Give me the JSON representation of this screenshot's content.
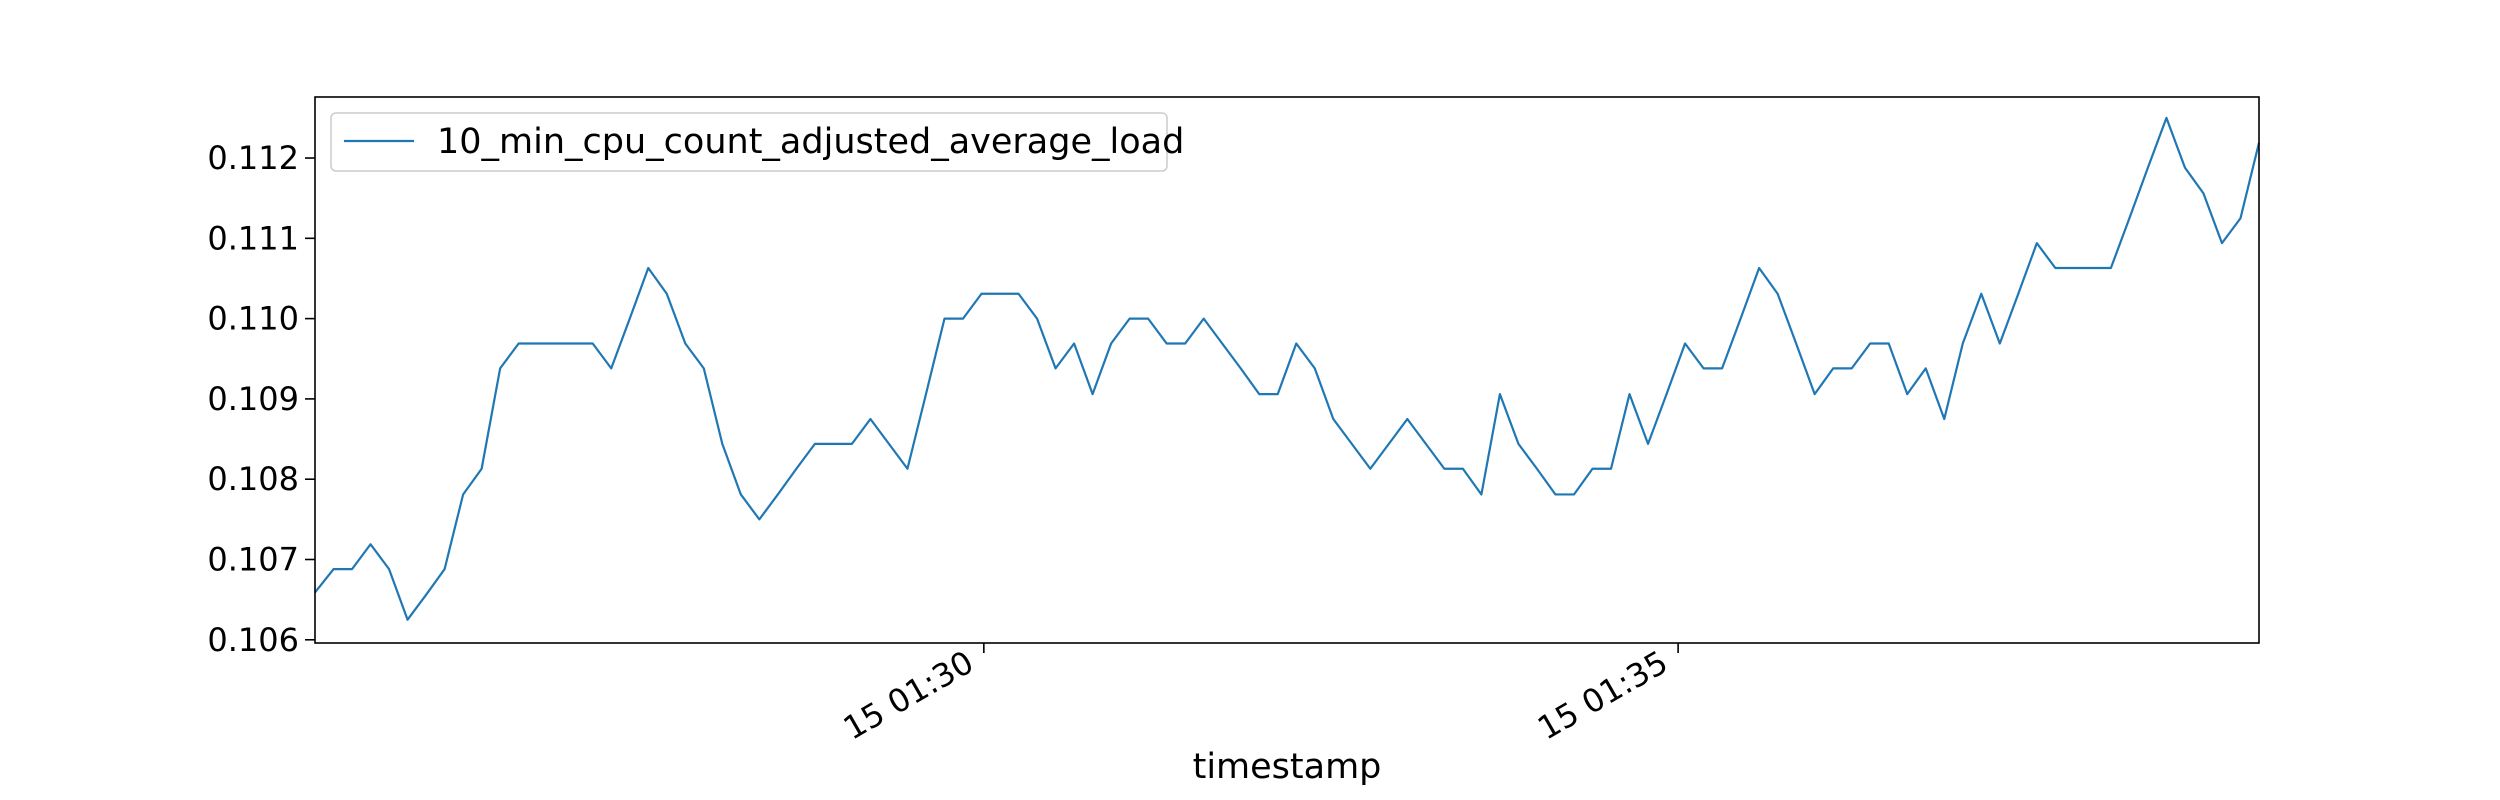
{
  "chart_data": {
    "type": "line",
    "title": "",
    "xlabel": "timestamp",
    "ylabel": "",
    "x_range": [
      "15 01:25:11",
      "15 01:39:11"
    ],
    "ylim": [
      0.10596,
      0.11276
    ],
    "y_ticks": [
      0.106,
      0.107,
      0.108,
      0.109,
      0.11,
      0.111,
      0.112
    ],
    "y_tick_labels": [
      "0.106",
      "0.107",
      "0.108",
      "0.109",
      "0.110",
      "0.111",
      "0.112"
    ],
    "x_ticks": [
      "15 01:30",
      "15 01:35"
    ],
    "x_tick_labels": [
      "15 01:30",
      "15 01:35"
    ],
    "grid": false,
    "legend": {
      "placement": "top-left"
    },
    "series": [
      {
        "name": "10_min_cpu_count_adjusted_average_load",
        "color": "#1f77b4",
        "points": [
          [
            "15 01:25:11",
            0.10659
          ],
          [
            "15 01:25:19",
            0.10688
          ],
          [
            "15 01:25:27",
            0.10688
          ],
          [
            "15 01:25:35",
            0.10719
          ],
          [
            "15 01:25:43",
            0.10688
          ],
          [
            "15 01:25:51",
            0.10625
          ],
          [
            "15 01:25:59",
            0.10656
          ],
          [
            "15 01:26:07",
            0.10688
          ],
          [
            "15 01:26:15",
            0.10781
          ],
          [
            "15 01:26:23",
            0.10813
          ],
          [
            "15 01:26:31",
            0.10938
          ],
          [
            "15 01:26:39",
            0.10969
          ],
          [
            "15 01:26:47",
            0.10969
          ],
          [
            "15 01:26:55",
            0.10969
          ],
          [
            "15 01:27:03",
            0.10969
          ],
          [
            "15 01:27:11",
            0.10969
          ],
          [
            "15 01:27:19",
            0.10938
          ],
          [
            "15 01:27:27",
            0.11
          ],
          [
            "15 01:27:35",
            0.11063
          ],
          [
            "15 01:27:43",
            0.11031
          ],
          [
            "15 01:27:51",
            0.10969
          ],
          [
            "15 01:27:59",
            0.10938
          ],
          [
            "15 01:28:07",
            0.10844
          ],
          [
            "15 01:28:15",
            0.10781
          ],
          [
            "15 01:28:23",
            0.1075
          ],
          [
            "15 01:28:31",
            0.10781
          ],
          [
            "15 01:28:39",
            0.10813
          ],
          [
            "15 01:28:47",
            0.10844
          ],
          [
            "15 01:28:55",
            0.10844
          ],
          [
            "15 01:29:03",
            0.10844
          ],
          [
            "15 01:29:11",
            0.10875
          ],
          [
            "15 01:29:19",
            0.10844
          ],
          [
            "15 01:29:27",
            0.10813
          ],
          [
            "15 01:29:35",
            0.10906
          ],
          [
            "15 01:29:43",
            0.11
          ],
          [
            "15 01:29:51",
            0.11
          ],
          [
            "15 01:29:59",
            0.11031
          ],
          [
            "15 01:30:07",
            0.11031
          ],
          [
            "15 01:30:15",
            0.11031
          ],
          [
            "15 01:30:23",
            0.11
          ],
          [
            "15 01:30:31",
            0.10938
          ],
          [
            "15 01:30:39",
            0.10969
          ],
          [
            "15 01:30:47",
            0.10906
          ],
          [
            "15 01:30:55",
            0.10969
          ],
          [
            "15 01:31:03",
            0.11
          ],
          [
            "15 01:31:11",
            0.11
          ],
          [
            "15 01:31:19",
            0.10969
          ],
          [
            "15 01:31:27",
            0.10969
          ],
          [
            "15 01:31:35",
            0.11
          ],
          [
            "15 01:31:43",
            0.10969
          ],
          [
            "15 01:31:51",
            0.10938
          ],
          [
            "15 01:31:59",
            0.10906
          ],
          [
            "15 01:32:07",
            0.10906
          ],
          [
            "15 01:32:15",
            0.10969
          ],
          [
            "15 01:32:23",
            0.10938
          ],
          [
            "15 01:32:31",
            0.10875
          ],
          [
            "15 01:32:39",
            0.10844
          ],
          [
            "15 01:32:47",
            0.10813
          ],
          [
            "15 01:32:55",
            0.10844
          ],
          [
            "15 01:33:03",
            0.10875
          ],
          [
            "15 01:33:11",
            0.10844
          ],
          [
            "15 01:33:19",
            0.10813
          ],
          [
            "15 01:33:27",
            0.10813
          ],
          [
            "15 01:33:35",
            0.10781
          ],
          [
            "15 01:33:43",
            0.10906
          ],
          [
            "15 01:33:51",
            0.10844
          ],
          [
            "15 01:33:59",
            0.10813
          ],
          [
            "15 01:34:07",
            0.10781
          ],
          [
            "15 01:34:15",
            0.10781
          ],
          [
            "15 01:34:23",
            0.10813
          ],
          [
            "15 01:34:31",
            0.10813
          ],
          [
            "15 01:34:39",
            0.10906
          ],
          [
            "15 01:34:47",
            0.10844
          ],
          [
            "15 01:34:55",
            0.10906
          ],
          [
            "15 01:35:03",
            0.10969
          ],
          [
            "15 01:35:11",
            0.10938
          ],
          [
            "15 01:35:19",
            0.10938
          ],
          [
            "15 01:35:27",
            0.11
          ],
          [
            "15 01:35:35",
            0.11063
          ],
          [
            "15 01:35:43",
            0.11031
          ],
          [
            "15 01:35:51",
            0.10969
          ],
          [
            "15 01:35:59",
            0.10906
          ],
          [
            "15 01:36:07",
            0.10938
          ],
          [
            "15 01:36:15",
            0.10938
          ],
          [
            "15 01:36:23",
            0.10969
          ],
          [
            "15 01:36:31",
            0.10969
          ],
          [
            "15 01:36:39",
            0.10906
          ],
          [
            "15 01:36:47",
            0.10938
          ],
          [
            "15 01:36:55",
            0.10875
          ],
          [
            "15 01:37:03",
            0.10969
          ],
          [
            "15 01:37:11",
            0.11031
          ],
          [
            "15 01:37:19",
            0.10969
          ],
          [
            "15 01:37:27",
            0.11031
          ],
          [
            "15 01:37:35",
            0.11094
          ],
          [
            "15 01:37:43",
            0.11063
          ],
          [
            "15 01:37:51",
            0.11063
          ],
          [
            "15 01:37:59",
            0.11063
          ],
          [
            "15 01:38:07",
            0.11063
          ],
          [
            "15 01:38:15",
            0.11125
          ],
          [
            "15 01:38:23",
            0.11188
          ],
          [
            "15 01:38:31",
            0.1125
          ],
          [
            "15 01:38:39",
            0.11188
          ],
          [
            "15 01:38:47",
            0.11156
          ],
          [
            "15 01:38:55",
            0.11094
          ],
          [
            "15 01:39:03",
            0.11125
          ],
          [
            "15 01:39:11",
            0.11219
          ]
        ]
      }
    ]
  }
}
